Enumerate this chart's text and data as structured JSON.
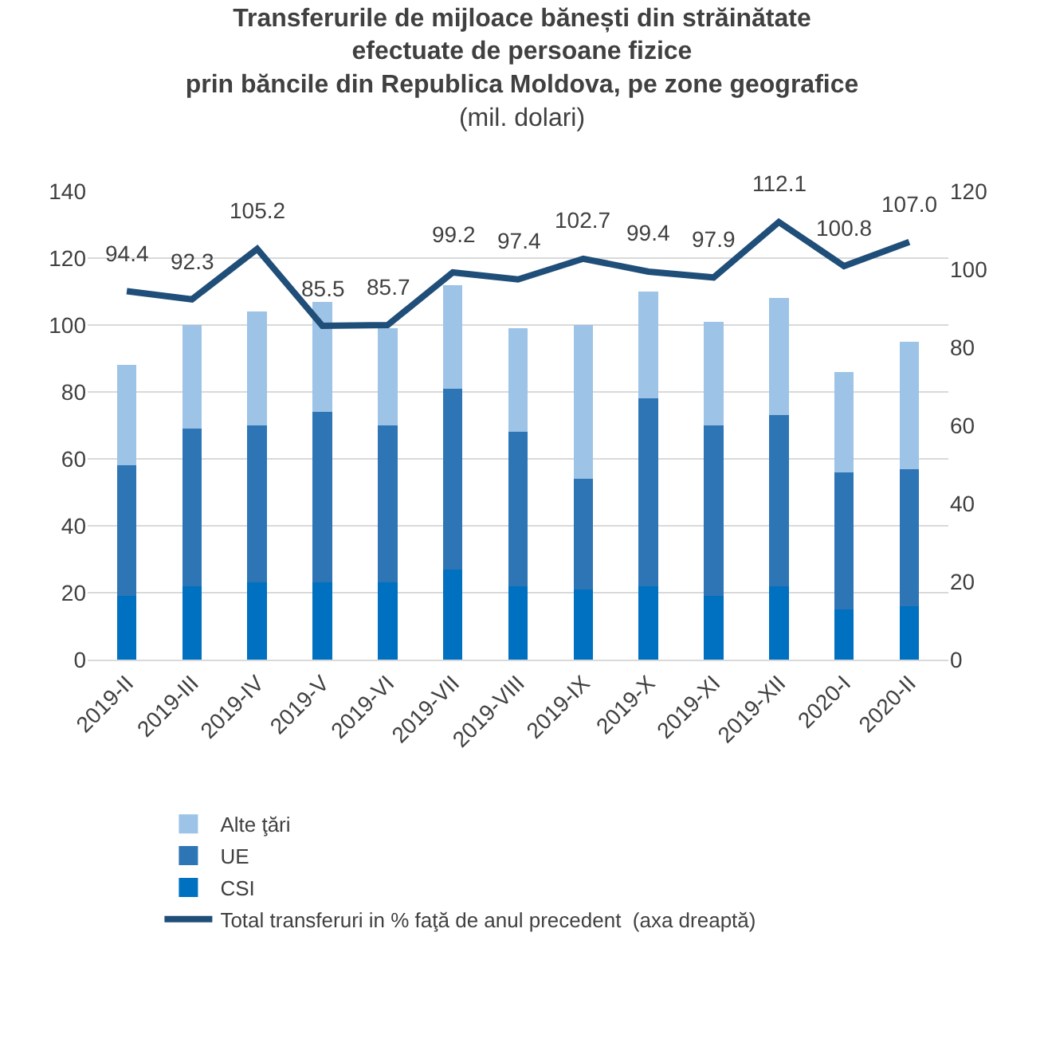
{
  "chart_data": {
    "type": "bar",
    "title": "Transferurile de mijloace bănești din străinătate\nefectuate de persoane fizice\nprin băncile din Republica Moldova, pe zone geografice",
    "subtitle": "(mil. dolari)",
    "categories": [
      "2019-II",
      "2019-III",
      "2019-IV",
      "2019-V",
      "2019-VI",
      "2019-VII",
      "2019-VIII",
      "2019-IX",
      "2019-X",
      "2019-XI",
      "2019-XII",
      "2020-I",
      "2020-II"
    ],
    "stacked": true,
    "series": [
      {
        "name": "CSI",
        "color": "#0070c0",
        "values": [
          19,
          22,
          23,
          23,
          23,
          27,
          22,
          21,
          22,
          19,
          22,
          15,
          16
        ]
      },
      {
        "name": "UE",
        "color": "#2e75b6",
        "values": [
          39,
          47,
          47,
          51,
          47,
          54,
          46,
          33,
          56,
          51,
          51,
          41,
          41
        ]
      },
      {
        "name": "Alte ţări",
        "color": "#9dc3e6",
        "values": [
          30,
          31,
          34,
          33,
          29,
          31,
          31,
          46,
          32,
          31,
          35,
          30,
          38
        ]
      },
      {
        "name": "Total transferuri in % faţă de anul precedent  (axa dreaptă)",
        "type": "line",
        "axis": "y2",
        "color": "#1f4e79",
        "values": [
          94.4,
          92.3,
          105.2,
          85.5,
          85.7,
          99.2,
          97.4,
          102.7,
          99.4,
          97.9,
          112.1,
          100.8,
          107.0
        ],
        "value_labels": [
          "94.4",
          "92.3",
          "105.2",
          "85.5",
          "85.7",
          "99.2",
          "97.4",
          "102.7",
          "99.4",
          "97.9",
          "112.1",
          "100.8",
          "107.0"
        ]
      }
    ],
    "ylim": [
      0,
      140
    ],
    "yticks": [
      0,
      20,
      40,
      60,
      80,
      100,
      120,
      140
    ],
    "y2lim": [
      0,
      120
    ],
    "y2ticks": [
      0,
      20,
      40,
      60,
      80,
      100,
      120
    ],
    "grid": "y",
    "legend": "bottom",
    "marker": "none",
    "line_style": "solid"
  }
}
